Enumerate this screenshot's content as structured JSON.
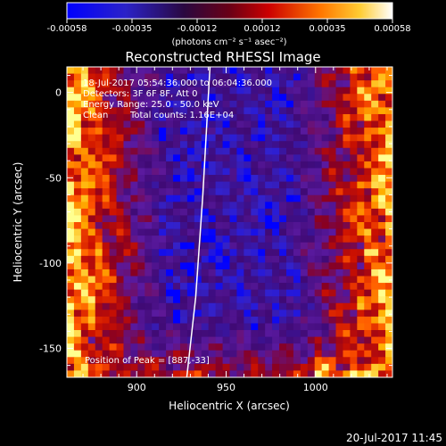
{
  "chart_data": {
    "type": "heatmap",
    "title": "Reconstructed RHESSI Image",
    "xlabel": "Heliocentric X (arcsec)",
    "ylabel": "Heliocentric Y (arcsec)",
    "xlim": [
      861,
      1043
    ],
    "ylim": [
      -167,
      15
    ],
    "x_ticks": [
      900,
      950,
      1000
    ],
    "y_ticks": [
      0,
      -50,
      -100,
      -150
    ],
    "grid": false,
    "colorbar": {
      "position": "top",
      "min": -0.00058,
      "max": 0.00058,
      "ticks": [
        "-0.00058",
        "-0.00035",
        "-0.00012",
        "0.00012",
        "0.00035",
        "0.00058"
      ],
      "label": "(photons cm⁻² s⁻¹ asec⁻²)"
    },
    "limb_curve": [
      [
        941,
        15
      ],
      [
        937,
        -60
      ],
      [
        933,
        -120
      ],
      [
        928,
        -167
      ]
    ],
    "annotations": [
      "18-Jul-2017 05:54:36.000 to 06:04:36.000",
      "Detectors: 3F 6F 8F, Att 0",
      "Energy Range: 25.0 - 50.0 keV",
      "Clean",
      "Total counts: 1.16E+04"
    ],
    "peak_label": "Position of Peak = [887,-33]",
    "footer_timestamp": "20-Jul-2017 11:45",
    "colors": {
      "background": "#000000",
      "text": "#ffffff",
      "colormap": [
        "#0000ff",
        "#3322cc",
        "#400a75",
        "#5a1aa0",
        "#880022",
        "#cc1100",
        "#ff5500",
        "#ffb000",
        "#ffff90"
      ]
    }
  }
}
